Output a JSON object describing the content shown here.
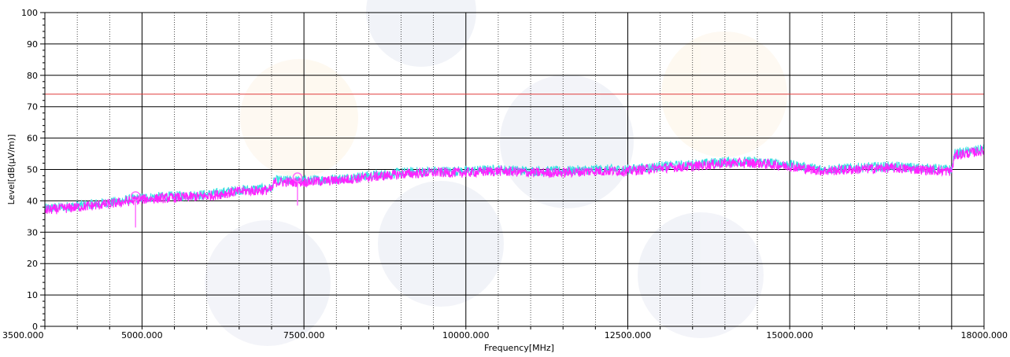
{
  "chart_data": {
    "type": "line",
    "title": "",
    "xlabel": "Frequency[MHz]",
    "ylabel": "Level[dB(μV/m)]",
    "xlim": [
      3500,
      18000
    ],
    "ylim": [
      0,
      100
    ],
    "x_ticks": [
      3500,
      5000,
      7500,
      10000,
      12500,
      15000,
      18000
    ],
    "x_tick_labels": [
      "3500.000",
      "5000.000",
      "7500.000",
      "10000.000",
      "12500.000",
      "15000.000",
      "18000.000"
    ],
    "y_ticks": [
      0,
      10,
      20,
      30,
      40,
      50,
      60,
      70,
      80,
      90,
      100
    ],
    "y_tick_labels": [
      "0",
      "10",
      "20",
      "30",
      "40",
      "50",
      "60",
      "70",
      "80",
      "90",
      "100"
    ],
    "x_major_grid": [
      5000,
      7500,
      10000,
      12500,
      15000,
      17500
    ],
    "x_minor_grid_step": 500,
    "grid": true,
    "limit_line": {
      "value": 74,
      "color": "#e03a3a"
    },
    "series": [
      {
        "color": "#33e0e0",
        "x": [
          3500,
          4000,
          4500,
          5000,
          5500,
          6000,
          6500,
          7000,
          7050,
          7500,
          8000,
          8500,
          9000,
          9500,
          10000,
          10500,
          11000,
          11500,
          12000,
          12500,
          13000,
          13500,
          14000,
          14500,
          15000,
          15500,
          16000,
          16500,
          17000,
          17400,
          17500,
          17550,
          18000
        ],
        "y": [
          37.5,
          38.5,
          39.5,
          41,
          41.5,
          42,
          43.5,
          44,
          46.5,
          46.5,
          47,
          48,
          49,
          49.5,
          49.5,
          50,
          49.5,
          49.5,
          50,
          50,
          51,
          51.5,
          52.5,
          52.5,
          51.5,
          50,
          50.5,
          51,
          50.5,
          50,
          50,
          55,
          56.5
        ]
      },
      {
        "color": "#ff22ff",
        "x": [
          3500,
          4000,
          4500,
          5000,
          5500,
          6000,
          6500,
          7000,
          7050,
          7500,
          8000,
          8500,
          9000,
          9500,
          10000,
          10500,
          11000,
          11500,
          12000,
          12500,
          13000,
          13500,
          14000,
          14500,
          15000,
          15500,
          16000,
          16500,
          17000,
          17400,
          17500,
          17550,
          18000
        ],
        "y": [
          37,
          38,
          39,
          40.5,
          41,
          41.5,
          43,
          43.5,
          46,
          46,
          46.5,
          47.5,
          48.5,
          49,
          49,
          49.5,
          49,
          49,
          49.5,
          49.5,
          50.5,
          51,
          52,
          52,
          51,
          49.5,
          50,
          50.5,
          50,
          49.5,
          49.5,
          54.5,
          56
        ]
      }
    ],
    "markers": [
      {
        "x": 4900,
        "y": 41.5,
        "drop_to": 31.5,
        "color": "#ff66ff"
      },
      {
        "x": 7400,
        "y": 47.5,
        "drop_to": 38.5,
        "color": "#ff66ff"
      }
    ]
  }
}
